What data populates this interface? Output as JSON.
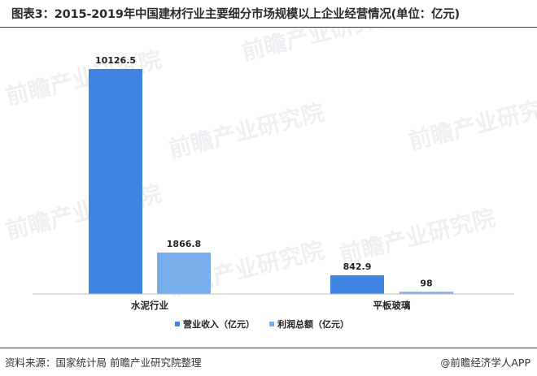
{
  "title": "图表3：2015-2019年中国建材行业主要细分市场规模以上企业经营情况(单位：亿元)",
  "footer": {
    "source": "资料来源：国家统计局 前瞻产业研究院整理",
    "credit": "前瞻经济学人APP",
    "credit_icon": "at-sign-icon"
  },
  "watermark": "前瞻产业研究院",
  "colors": {
    "series1": "#3d85e0",
    "series2": "#79aeec"
  },
  "chart_data": {
    "type": "bar",
    "title": "图表3：2015-2019年中国建材行业主要细分市场规模以上企业经营情况(单位：亿元)",
    "categories": [
      "水泥行业",
      "平板玻璃"
    ],
    "series": [
      {
        "name": "营业收入（亿元）",
        "values": [
          10126.5,
          842.9
        ],
        "labels": [
          "10126.5",
          "842.9"
        ]
      },
      {
        "name": "利润总额（亿元）",
        "values": [
          1866.8,
          98
        ],
        "labels": [
          "1866.8",
          "98"
        ]
      }
    ],
    "ylim": [
      0,
      10126.5
    ],
    "grid": false,
    "legend": "bottom-center",
    "xlabel": "",
    "ylabel": ""
  }
}
